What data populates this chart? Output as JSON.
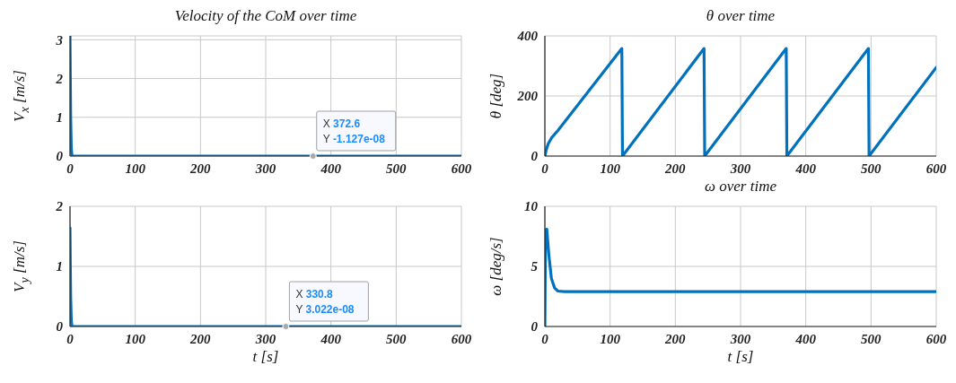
{
  "chart_data": [
    {
      "type": "line",
      "title": "Velocity of the CoM over time",
      "ylabel": "V$_{x}$ [m/s]",
      "x": [
        0,
        0.5,
        1,
        2,
        3,
        600
      ],
      "values": [
        3.1,
        2.0,
        1.0,
        0.2,
        0,
        0
      ],
      "color": "#0072bd",
      "xlim": [
        0,
        600
      ],
      "xticks": [
        0,
        100,
        200,
        300,
        400,
        500,
        600
      ],
      "ylim": [
        0,
        3.1
      ],
      "yticks": [
        0,
        1,
        2,
        3
      ],
      "grid": true,
      "annotations": [
        {
          "text": "X 372.6\nY -1.127e-08",
          "x": 372.6,
          "y": 0
        }
      ]
    },
    {
      "type": "line",
      "title": "θ over time",
      "ylabel": "θ [deg]",
      "x": [
        0,
        2,
        5,
        10,
        20,
        118,
        119,
        244,
        245,
        370,
        371,
        496,
        497,
        600
      ],
      "values": [
        0,
        20,
        40,
        60,
        85,
        358,
        0,
        358,
        0,
        358,
        0,
        358,
        0,
        295
      ],
      "color": "#0072bd",
      "xlim": [
        0,
        600
      ],
      "xticks": [
        0,
        100,
        200,
        300,
        400,
        500,
        600
      ],
      "ylim": [
        0,
        400
      ],
      "yticks": [
        0,
        200,
        400
      ],
      "grid": true
    },
    {
      "type": "line",
      "xlabel": "t [s]",
      "ylabel": "V$_{y}$ [m/s]",
      "x": [
        0,
        0.5,
        1,
        2,
        3,
        600
      ],
      "values": [
        1.64,
        1.0,
        0.5,
        0.1,
        0,
        0
      ],
      "color": "#0072bd",
      "xlim": [
        0,
        600
      ],
      "xticks": [
        0,
        100,
        200,
        300,
        400,
        500,
        600
      ],
      "ylim": [
        0,
        2
      ],
      "yticks": [
        0,
        1,
        2
      ],
      "grid": true,
      "annotations": [
        {
          "text": "X 330.8\nY 3.022e-08",
          "x": 330.8,
          "y": 0
        }
      ]
    },
    {
      "type": "line",
      "title": "ω over time",
      "xlabel": "t [s]",
      "ylabel": "ω [deg/s]",
      "x": [
        0,
        1,
        3,
        6,
        10,
        15,
        20,
        30,
        600
      ],
      "values": [
        0,
        8,
        8.1,
        6,
        4,
        3.2,
        2.95,
        2.9,
        2.9
      ],
      "color": "#0072bd",
      "xlim": [
        0,
        600
      ],
      "xticks": [
        0,
        100,
        200,
        300,
        400,
        500,
        600
      ],
      "ylim": [
        0,
        10
      ],
      "yticks": [
        0,
        5,
        10
      ],
      "grid": true
    }
  ]
}
